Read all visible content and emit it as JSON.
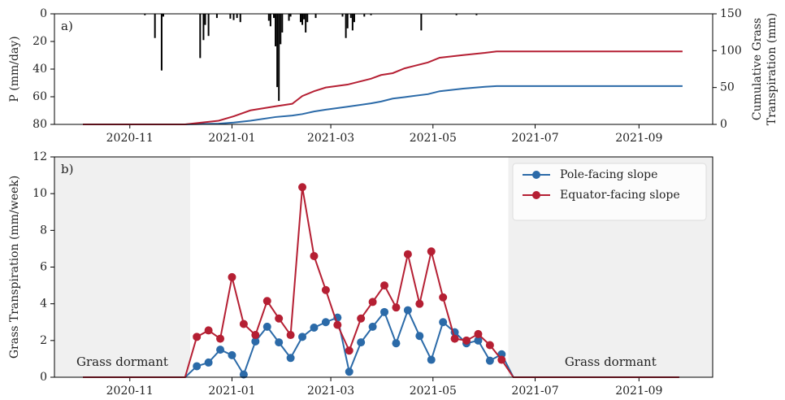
{
  "chart_data": [
    {
      "type": "bar",
      "panel_label": "a)",
      "ylabel": "P (mm/day)",
      "y2label": [
        "Cumulative Grass",
        "Transpiration (mm)"
      ],
      "xlim": [
        -45,
        348
      ],
      "xticks": [
        {
          "value": 0,
          "label": "2020-11"
        },
        {
          "value": 61,
          "label": "2021-01"
        },
        {
          "value": 120,
          "label": "2021-03"
        },
        {
          "value": 181,
          "label": "2021-05"
        },
        {
          "value": 242,
          "label": "2021-07"
        },
        {
          "value": 304,
          "label": "2021-09"
        }
      ],
      "ylim": [
        80,
        0
      ],
      "yticks": [
        0,
        20,
        40,
        60,
        80
      ],
      "y2lim": [
        0,
        150
      ],
      "y2ticks": [
        0,
        50,
        100,
        150
      ],
      "color": "#000000",
      "x": [
        9,
        15,
        19,
        20,
        42,
        44,
        45,
        47,
        52,
        60,
        62,
        64,
        66,
        83,
        84,
        86,
        87,
        88,
        89,
        90,
        91,
        95,
        96,
        102,
        103,
        104,
        105,
        106,
        111,
        127,
        129,
        130,
        132,
        133,
        134,
        140,
        144,
        174,
        195,
        207
      ],
      "values": [
        1,
        17.5,
        41,
        2,
        32,
        19,
        8,
        16,
        3,
        3.5,
        4.5,
        3,
        6,
        5,
        9,
        3,
        23.5,
        53,
        63,
        22,
        13.5,
        5,
        2,
        6,
        8,
        4,
        13.5,
        6,
        3,
        2,
        17.5,
        10.5,
        3,
        12,
        6,
        2,
        1,
        12,
        1,
        1
      ],
      "lines": {
        "x": [
          -28,
          33,
          53,
          62,
          72,
          87,
          97,
          103,
          110,
          117,
          130,
          144,
          150,
          157,
          164,
          178,
          185,
          199,
          212,
          219,
          330
        ],
        "series": [
          {
            "color": "#2b6aa8",
            "axis": "y2",
            "values": [
              0,
              0,
              1,
              2.5,
              5,
              10,
              12,
              14,
              17.5,
              20,
              24,
              28.5,
              31,
              35,
              37,
              41,
              45,
              48.5,
              51,
              52,
              52
            ]
          },
          {
            "color": "#b51f33",
            "axis": "y2",
            "values": [
              0,
              0,
              5,
              11,
              19,
              24.5,
              28,
              38.5,
              45,
              50,
              54,
              62,
              67,
              69.5,
              76,
              84,
              90.5,
              94,
              97,
              99,
              99
            ]
          }
        ]
      }
    },
    {
      "type": "line",
      "panel_label": "b)",
      "ylabel": "Grass Transpiration (mm/week)",
      "xlim": [
        -45,
        348
      ],
      "xticks": [
        {
          "value": 0,
          "label": "2020-11"
        },
        {
          "value": 61,
          "label": "2021-01"
        },
        {
          "value": 120,
          "label": "2021-03"
        },
        {
          "value": 181,
          "label": "2021-05"
        },
        {
          "value": 242,
          "label": "2021-07"
        },
        {
          "value": 304,
          "label": "2021-09"
        }
      ],
      "ylim": [
        0,
        12
      ],
      "yticks": [
        0,
        2,
        4,
        6,
        8,
        10,
        12
      ],
      "legend": "upper right",
      "shaded": [
        {
          "xlim": [
            -45,
            36
          ],
          "label": "Grass dormant",
          "color": "#f0f0f0"
        },
        {
          "xlim": [
            226,
            348
          ],
          "label": "Grass dormant",
          "color": "#f0f0f0"
        }
      ],
      "x": [
        -28,
        33,
        40,
        47,
        54,
        61,
        68,
        75,
        82,
        89,
        96,
        103,
        110,
        117,
        124,
        131,
        138,
        145,
        152,
        159,
        166,
        173,
        180,
        187,
        194,
        201,
        208,
        215,
        222,
        229,
        328
      ],
      "series": [
        {
          "name": "Pole-facing slope",
          "color": "#2b6aa8",
          "values": [
            0,
            0,
            0.6,
            0.8,
            1.5,
            1.2,
            0.15,
            1.95,
            2.75,
            1.9,
            1.05,
            2.2,
            2.7,
            3.0,
            3.25,
            0.3,
            1.9,
            2.75,
            3.55,
            1.85,
            3.65,
            2.25,
            0.95,
            3.0,
            2.45,
            1.85,
            2.0,
            0.9,
            1.25,
            0,
            0
          ]
        },
        {
          "name": "Equator-facing slope",
          "color": "#b51f33",
          "values": [
            0,
            0,
            2.2,
            2.55,
            2.1,
            5.45,
            2.9,
            2.3,
            4.15,
            3.2,
            2.3,
            10.35,
            6.6,
            4.75,
            2.85,
            1.45,
            3.2,
            4.1,
            5.0,
            3.8,
            6.7,
            4.0,
            6.85,
            4.35,
            2.1,
            2.0,
            2.35,
            1.75,
            0.95,
            0,
            0
          ]
        }
      ]
    }
  ]
}
